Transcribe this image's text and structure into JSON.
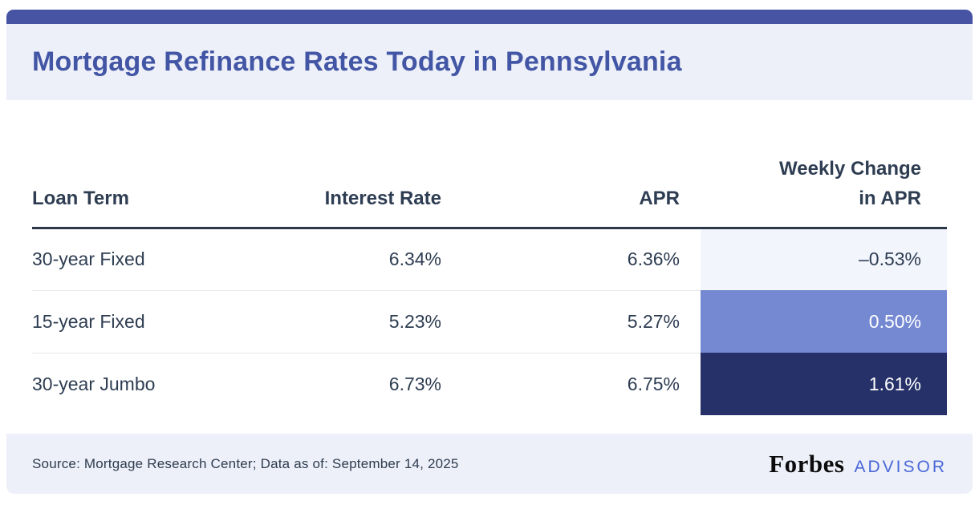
{
  "header": {
    "title": "Mortgage Refinance Rates Today in Pennsylvania"
  },
  "table": {
    "columns": [
      {
        "label": "Loan Term"
      },
      {
        "label": "Interest Rate"
      },
      {
        "label": "APR"
      },
      {
        "label": "Weekly Change\nin APR"
      }
    ],
    "rows": [
      {
        "loan_term": "30-year Fixed",
        "interest_rate": "6.34%",
        "apr": "6.36%",
        "weekly_change": "–0.53%"
      },
      {
        "loan_term": "15-year Fixed",
        "interest_rate": "5.23%",
        "apr": "5.27%",
        "weekly_change": "0.50%"
      },
      {
        "loan_term": "30-year Jumbo",
        "interest_rate": "6.73%",
        "apr": "6.75%",
        "weekly_change": "1.61%"
      }
    ]
  },
  "chart_data": {
    "type": "table",
    "title": "Mortgage Refinance Rates Today in Pennsylvania",
    "columns": [
      "Loan Term",
      "Interest Rate",
      "APR",
      "Weekly Change in APR"
    ],
    "rows": [
      [
        "30-year Fixed",
        "6.34%",
        "6.36%",
        "-0.53%"
      ],
      [
        "15-year Fixed",
        "5.23%",
        "5.27%",
        "0.50%"
      ],
      [
        "30-year Jumbo",
        "6.73%",
        "6.75%",
        "1.61%"
      ]
    ],
    "weekly_change_values": [
      -0.53,
      0.5,
      1.61
    ],
    "source": "Source: Mortgage Research Center; Data as of: September 14, 2025"
  },
  "footer": {
    "source": "Source: Mortgage Research Center; Data as of: September 14, 2025",
    "brand_name": "Forbes",
    "brand_suffix": "ADVISOR"
  },
  "colors": {
    "top_bar": "#4754a4",
    "title_text": "#4356a5",
    "band_background": "#edf0f8",
    "table_text": "#2e3d52",
    "header_border": "#2c3848",
    "cell_light": "#f2f5fc",
    "cell_medium": "#7589d3",
    "cell_dark": "#263169",
    "advisor_blue": "#4a67d8"
  }
}
